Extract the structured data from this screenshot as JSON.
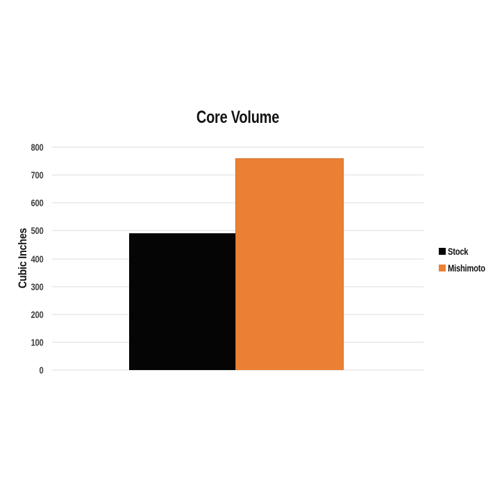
{
  "page": {
    "background": "#ffffff",
    "text_color": "#131313",
    "tick_text_color": "#3d3d3d",
    "gridline_color": "#ededed"
  },
  "chart_data": {
    "type": "bar",
    "title": "Core Volume",
    "xlabel": "",
    "ylabel": "Cubic Inches",
    "ylim": [
      0,
      800
    ],
    "yticks": [
      0,
      100,
      200,
      300,
      400,
      500,
      600,
      700,
      800
    ],
    "grid": true,
    "legend_position": "right",
    "categories": [
      ""
    ],
    "series": [
      {
        "name": "Stock",
        "values": [
          490
        ],
        "color": "#050505",
        "border_color": "#000000"
      },
      {
        "name": "Mishimoto",
        "values": [
          760
        ],
        "color": "#EB8034",
        "border_color": "#CF6B27"
      }
    ]
  }
}
